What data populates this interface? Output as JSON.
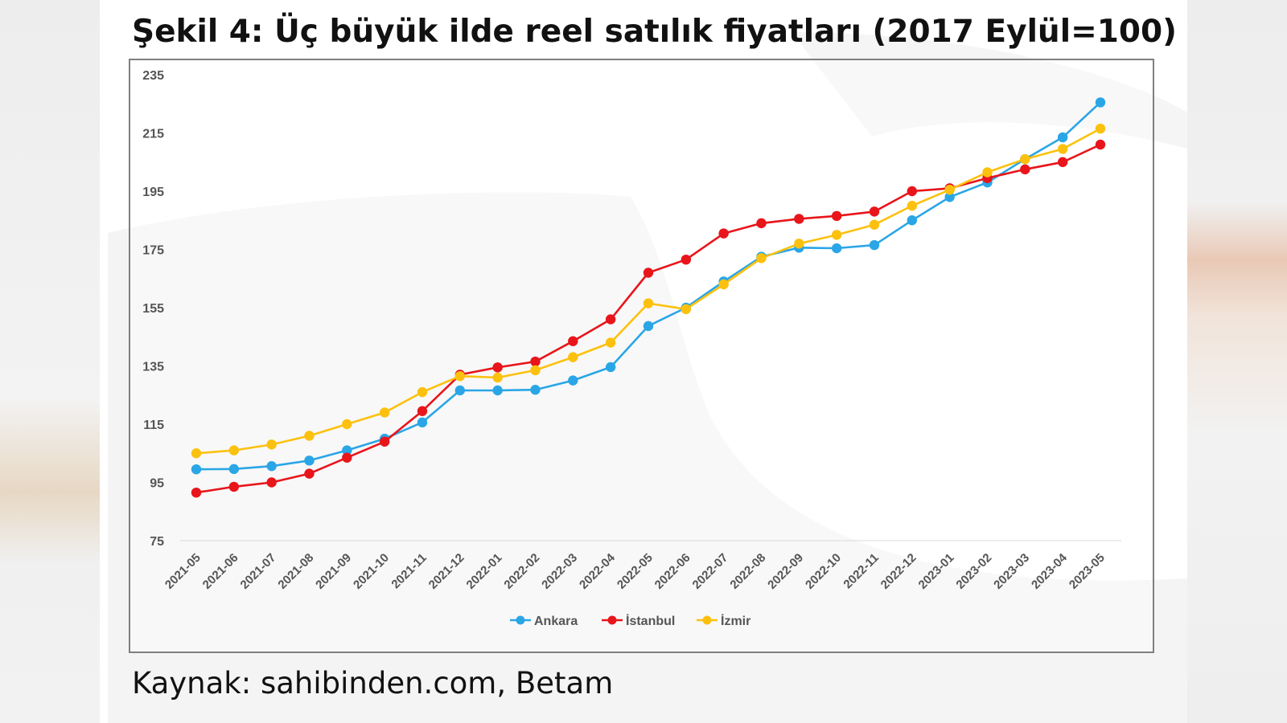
{
  "title": "Şekil 4: Üç büyük ilde reel satılık fiyatları (2017 Eylül=100)",
  "source": "Kaynak: sahibinden.com, Betam",
  "colors": {
    "ankara": "#2aa6e6",
    "istanbul": "#e8151b",
    "izmir": "#fcc10f",
    "grid": "#d9d9d9"
  },
  "chart_data": {
    "type": "line",
    "title": "",
    "xlabel": "",
    "ylabel": "",
    "ylim": [
      75,
      235
    ],
    "yticks": [
      75,
      95,
      115,
      135,
      155,
      175,
      195,
      215,
      235
    ],
    "grid": "horizontal",
    "legend_position": "bottom",
    "x": [
      "2021-05",
      "2021-06",
      "2021-07",
      "2021-08",
      "2021-09",
      "2021-10",
      "2021-11",
      "2021-12",
      "2022-01",
      "2022-02",
      "2022-03",
      "2022-04",
      "2022-05",
      "2022-06",
      "2022-07",
      "2022-08",
      "2022-09",
      "2022-10",
      "2022-11",
      "2022-12",
      "2023-01",
      "2023-02",
      "2023-03",
      "2023-04",
      "2023-05"
    ],
    "series": [
      {
        "name": "Ankara",
        "color": "#2aa6e6",
        "values": [
          99.5,
          99.6,
          100.6,
          102.5,
          106.0,
          110.0,
          115.6,
          126.6,
          126.6,
          126.8,
          130.0,
          134.6,
          148.7,
          155.0,
          164.0,
          172.5,
          175.6,
          175.4,
          176.5,
          185.0,
          193.0,
          198.0,
          206.0,
          213.5,
          225.5
        ]
      },
      {
        "name": "İstanbul",
        "color": "#e8151b",
        "values": [
          91.5,
          93.5,
          95.0,
          98.0,
          103.5,
          109.0,
          119.5,
          132.0,
          134.5,
          136.5,
          143.5,
          151.0,
          167.0,
          171.5,
          180.5,
          184.0,
          185.5,
          186.5,
          188.0,
          195.0,
          196.0,
          199.5,
          202.5,
          205.0,
          211.0
        ]
      },
      {
        "name": "İzmir",
        "color": "#fcc10f",
        "values": [
          105.0,
          106.0,
          108.0,
          111.0,
          115.0,
          119.0,
          126.0,
          131.5,
          131.0,
          133.5,
          138.0,
          143.0,
          156.5,
          154.5,
          163.0,
          172.0,
          177.0,
          180.0,
          183.5,
          190.0,
          195.5,
          201.5,
          206.0,
          209.5,
          216.5
        ]
      }
    ]
  }
}
